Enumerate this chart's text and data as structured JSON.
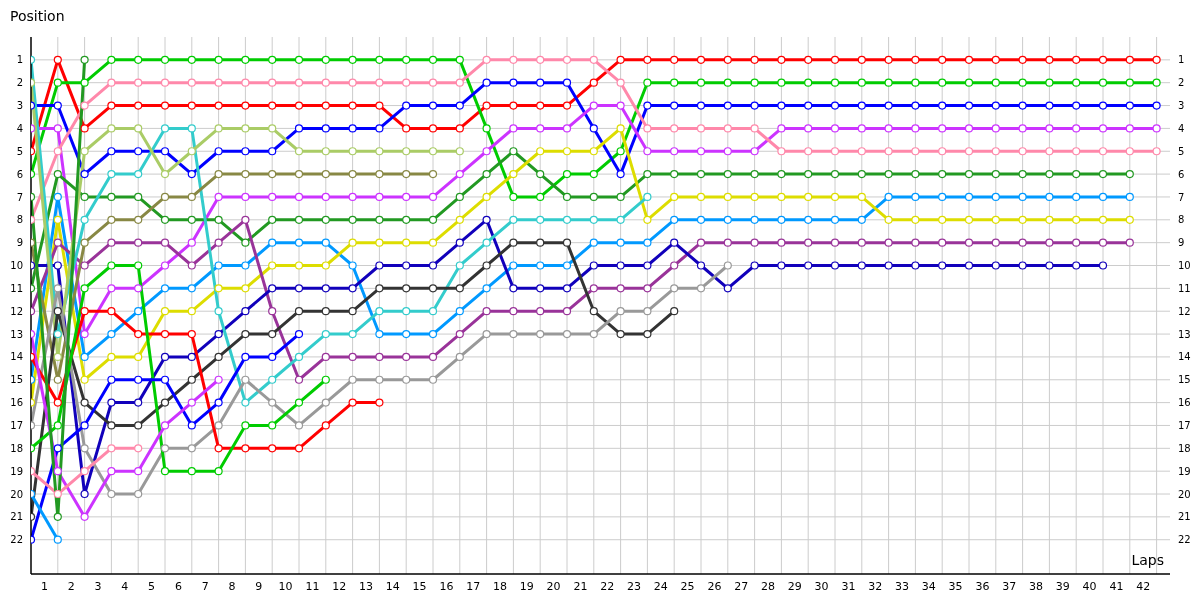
{
  "chart_data": {
    "type": "line",
    "xlabel": "Laps",
    "ylabel": "Position",
    "x": [
      0,
      1,
      2,
      3,
      4,
      5,
      6,
      7,
      8,
      9,
      10,
      11,
      12,
      13,
      14,
      15,
      16,
      17,
      18,
      19,
      20,
      21,
      22,
      23,
      24,
      25,
      26,
      27,
      28,
      29,
      30,
      31,
      32,
      33,
      34,
      35,
      36,
      37,
      38,
      39,
      40,
      41,
      42
    ],
    "xlim": [
      0,
      42.5
    ],
    "xticks": [
      {
        "value": 0.5,
        "label": "1"
      },
      {
        "value": 1.5,
        "label": "2"
      },
      {
        "value": 2.5,
        "label": "3"
      },
      {
        "value": 3.5,
        "label": "4"
      },
      {
        "value": 4.5,
        "label": "5"
      },
      {
        "value": 5.5,
        "label": "6"
      },
      {
        "value": 6.5,
        "label": "7"
      },
      {
        "value": 7.5,
        "label": "8"
      },
      {
        "value": 8.5,
        "label": "9"
      },
      {
        "value": 9.5,
        "label": "10"
      },
      {
        "value": 10.5,
        "label": "11"
      },
      {
        "value": 11.5,
        "label": "12"
      },
      {
        "value": 12.5,
        "label": "13"
      },
      {
        "value": 13.5,
        "label": "14"
      },
      {
        "value": 14.5,
        "label": "15"
      },
      {
        "value": 15.5,
        "label": "16"
      },
      {
        "value": 16.5,
        "label": "17"
      },
      {
        "value": 17.5,
        "label": "18"
      },
      {
        "value": 18.5,
        "label": "19"
      },
      {
        "value": 19.5,
        "label": "20"
      },
      {
        "value": 20.5,
        "label": "21"
      },
      {
        "value": 21.5,
        "label": "22"
      },
      {
        "value": 22.5,
        "label": "23"
      },
      {
        "value": 23.5,
        "label": "24"
      },
      {
        "value": 24.5,
        "label": "25"
      },
      {
        "value": 25.5,
        "label": "26"
      },
      {
        "value": 26.5,
        "label": "27"
      },
      {
        "value": 27.5,
        "label": "28"
      },
      {
        "value": 28.5,
        "label": "29"
      },
      {
        "value": 29.5,
        "label": "30"
      },
      {
        "value": 30.5,
        "label": "31"
      },
      {
        "value": 31.5,
        "label": "32"
      },
      {
        "value": 32.5,
        "label": "33"
      },
      {
        "value": 33.5,
        "label": "34"
      },
      {
        "value": 34.5,
        "label": "35"
      },
      {
        "value": 35.5,
        "label": "36"
      },
      {
        "value": 36.5,
        "label": "37"
      },
      {
        "value": 37.5,
        "label": "38"
      },
      {
        "value": 38.5,
        "label": "39"
      },
      {
        "value": 39.5,
        "label": "40"
      },
      {
        "value": 40.5,
        "label": "41"
      },
      {
        "value": 41.5,
        "label": "42"
      },
      {
        "value": 1,
        "label": null
      },
      {
        "value": 2,
        "label": null
      },
      {
        "value": 3,
        "label": null
      },
      {
        "value": 4,
        "label": null
      },
      {
        "value": 5,
        "label": null
      },
      {
        "value": 6,
        "label": null
      },
      {
        "value": 7,
        "label": null
      },
      {
        "value": 8,
        "label": null
      },
      {
        "value": 9,
        "label": null
      },
      {
        "value": 10,
        "label": null
      },
      {
        "value": 11,
        "label": null
      },
      {
        "value": 12,
        "label": null
      },
      {
        "value": 13,
        "label": null
      },
      {
        "value": 14,
        "label": null
      },
      {
        "value": 15,
        "label": null
      },
      {
        "value": 16,
        "label": null
      },
      {
        "value": 17,
        "label": null
      },
      {
        "value": 18,
        "label": null
      },
      {
        "value": 19,
        "label": null
      },
      {
        "value": 20,
        "label": null
      },
      {
        "value": 21,
        "label": null
      },
      {
        "value": 22,
        "label": null
      },
      {
        "value": 23,
        "label": null
      },
      {
        "value": 24,
        "label": null
      },
      {
        "value": 25,
        "label": null
      },
      {
        "value": 26,
        "label": null
      },
      {
        "value": 27,
        "label": null
      },
      {
        "value": 28,
        "label": null
      },
      {
        "value": 29,
        "label": null
      },
      {
        "value": 30,
        "label": null
      },
      {
        "value": 31,
        "label": null
      },
      {
        "value": 32,
        "label": null
      },
      {
        "value": 33,
        "label": null
      },
      {
        "value": 34,
        "label": null
      },
      {
        "value": 35,
        "label": null
      },
      {
        "value": 36,
        "label": null
      },
      {
        "value": 37,
        "label": null
      },
      {
        "value": 38,
        "label": null
      },
      {
        "value": 39,
        "label": null
      },
      {
        "value": 40,
        "label": null
      },
      {
        "value": 41,
        "label": null
      },
      {
        "value": 42,
        "label": null
      }
    ],
    "ylim": [
      23.5,
      0
    ],
    "yticks": [
      1,
      2,
      3,
      4,
      5,
      6,
      7,
      8,
      9,
      10,
      11,
      12,
      13,
      14,
      15,
      16,
      17,
      18,
      19,
      20,
      21,
      22
    ],
    "y2lim": [
      23.5,
      0
    ],
    "y2ticks": [
      1,
      2,
      3,
      4,
      5,
      6,
      7,
      8,
      9,
      10,
      11,
      12,
      13,
      14,
      15,
      16,
      17,
      18,
      19,
      20,
      21,
      22
    ],
    "grid": true,
    "legend": false,
    "marker": "circle",
    "line_style": "solid",
    "series": [
      {
        "color": "#ff0000",
        "values": [
          5,
          1,
          4,
          3,
          3,
          3,
          3,
          3,
          3,
          3,
          3,
          3,
          3,
          3,
          4,
          4,
          4,
          3,
          3,
          3,
          3,
          2,
          1,
          1,
          1,
          1,
          1,
          1,
          1,
          1,
          1,
          1,
          1,
          1,
          1,
          1,
          1,
          1,
          1,
          1,
          1,
          1,
          1
        ]
      },
      {
        "color": "#00cc00",
        "values": [
          6,
          2,
          2,
          1,
          1,
          1,
          1,
          1,
          1,
          1,
          1,
          1,
          1,
          1,
          1,
          1,
          1,
          4,
          7,
          7,
          6,
          6,
          5,
          2,
          2,
          2,
          2,
          2,
          2,
          2,
          2,
          2,
          2,
          2,
          2,
          2,
          2,
          2,
          2,
          2,
          2,
          2,
          2
        ]
      },
      {
        "color": "#0000ff",
        "values": [
          3,
          3,
          6,
          5,
          5,
          5,
          6,
          5,
          5,
          5,
          4,
          4,
          4,
          4,
          3,
          3,
          3,
          2,
          2,
          2,
          2,
          4,
          6,
          3,
          3,
          3,
          3,
          3,
          3,
          3,
          3,
          3,
          3,
          3,
          3,
          3,
          3,
          3,
          3,
          3,
          3,
          3,
          3
        ]
      },
      {
        "color": "#cc33ff",
        "values": [
          4,
          4,
          13,
          11,
          11,
          10,
          9,
          7,
          7,
          7,
          7,
          7,
          7,
          7,
          7,
          7,
          6,
          5,
          4,
          4,
          4,
          3,
          3,
          5,
          5,
          5,
          5,
          5,
          4,
          4,
          4,
          4,
          4,
          4,
          4,
          4,
          4,
          4,
          4,
          4,
          4,
          4,
          4
        ]
      },
      {
        "color": "#ff88aa",
        "values": [
          8,
          5,
          3,
          2,
          2,
          2,
          2,
          2,
          2,
          2,
          2,
          2,
          2,
          2,
          2,
          2,
          2,
          1,
          1,
          1,
          1,
          1,
          2,
          4,
          4,
          4,
          4,
          4,
          5,
          5,
          5,
          5,
          5,
          5,
          5,
          5,
          5,
          5,
          5,
          5,
          5,
          5,
          5
        ]
      },
      {
        "color": "#229922",
        "values": [
          11,
          6,
          7,
          7,
          7,
          8,
          8,
          8,
          9,
          8,
          8,
          8,
          8,
          8,
          8,
          8,
          7,
          6,
          5,
          6,
          7,
          7,
          7,
          6,
          6,
          6,
          6,
          6,
          6,
          6,
          6,
          6,
          6,
          6,
          6,
          6,
          6,
          6,
          6,
          6,
          6,
          6,
          null
        ]
      },
      {
        "color": "#0099ff",
        "values": [
          15,
          7,
          14,
          13,
          12,
          11,
          11,
          10,
          10,
          9,
          9,
          9,
          10,
          13,
          13,
          13,
          12,
          11,
          10,
          10,
          10,
          9,
          9,
          9,
          8,
          8,
          8,
          8,
          8,
          8,
          8,
          8,
          7,
          7,
          7,
          7,
          7,
          7,
          7,
          7,
          7,
          7,
          null
        ]
      },
      {
        "color": "#dddd00",
        "values": [
          16,
          8,
          15,
          14,
          14,
          12,
          12,
          11,
          11,
          10,
          10,
          10,
          9,
          9,
          9,
          9,
          8,
          7,
          6,
          5,
          5,
          5,
          4,
          8,
          7,
          7,
          7,
          7,
          7,
          7,
          7,
          7,
          8,
          8,
          8,
          8,
          8,
          8,
          8,
          8,
          8,
          8,
          null
        ]
      },
      {
        "color": "#993399",
        "values": [
          12,
          9,
          10,
          9,
          9,
          9,
          10,
          9,
          8,
          12,
          15,
          14,
          14,
          14,
          14,
          14,
          13,
          12,
          12,
          12,
          12,
          11,
          11,
          11,
          10,
          9,
          9,
          9,
          9,
          9,
          9,
          9,
          9,
          9,
          9,
          9,
          9,
          9,
          9,
          9,
          9,
          9,
          null
        ]
      },
      {
        "color": "#1100bb",
        "values": [
          10,
          10,
          20,
          16,
          16,
          14,
          14,
          13,
          12,
          11,
          11,
          11,
          11,
          10,
          10,
          10,
          9,
          8,
          11,
          11,
          11,
          10,
          10,
          10,
          9,
          10,
          11,
          10,
          10,
          10,
          10,
          10,
          10,
          10,
          10,
          10,
          10,
          10,
          10,
          10,
          10,
          null,
          null
        ]
      },
      {
        "color": "#33cccc",
        "values": [
          1,
          13,
          8,
          6,
          6,
          4,
          4,
          12,
          16,
          15,
          14,
          13,
          13,
          12,
          12,
          12,
          10,
          9,
          8,
          8,
          8,
          8,
          8,
          7,
          null,
          null,
          null,
          null,
          null,
          null,
          null,
          null,
          null,
          null,
          null,
          null,
          null,
          null,
          null,
          null,
          null,
          null,
          null
        ]
      },
      {
        "color": "#888844",
        "values": [
          9,
          15,
          9,
          8,
          8,
          7,
          7,
          6,
          6,
          6,
          6,
          6,
          6,
          6,
          6,
          6,
          null,
          null,
          null,
          null,
          null,
          null,
          null,
          null,
          null,
          null,
          null,
          null,
          null,
          null,
          null,
          null,
          null,
          null,
          null,
          null,
          null,
          null,
          null,
          null,
          null,
          null,
          null
        ]
      },
      {
        "color": "#aacc66",
        "values": [
          2,
          14,
          5,
          4,
          4,
          6,
          5,
          4,
          4,
          4,
          5,
          5,
          5,
          5,
          5,
          5,
          5,
          null,
          null,
          null,
          null,
          null,
          null,
          null,
          null,
          null,
          null,
          null,
          null,
          null,
          null,
          null,
          null,
          null,
          null,
          null,
          null,
          null,
          null,
          null,
          null,
          null,
          null
        ]
      },
      {
        "color": "#333333",
        "values": [
          21,
          12,
          16,
          17,
          17,
          16,
          15,
          14,
          13,
          13,
          12,
          12,
          12,
          11,
          11,
          11,
          11,
          10,
          9,
          9,
          9,
          12,
          13,
          13,
          12,
          null,
          null,
          null,
          null,
          null,
          null,
          null,
          null,
          null,
          null,
          null,
          null,
          null,
          null,
          null,
          null,
          null,
          null
        ]
      },
      {
        "color": "#999999",
        "values": [
          17,
          11,
          18,
          20,
          20,
          18,
          18,
          17,
          15,
          16,
          17,
          16,
          15,
          15,
          15,
          15,
          14,
          13,
          13,
          13,
          13,
          13,
          12,
          12,
          11,
          11,
          10,
          null,
          null,
          null,
          null,
          null,
          null,
          null,
          null,
          null,
          null,
          null,
          null,
          null,
          null,
          null,
          null
        ]
      },
      {
        "color": "#ff0000",
        "values": [
          14,
          16,
          12,
          12,
          13,
          13,
          13,
          18,
          18,
          18,
          18,
          17,
          16,
          16,
          null,
          null,
          null,
          null,
          null,
          null,
          null,
          null,
          null,
          null,
          null,
          null,
          null,
          null,
          null,
          null,
          null,
          null,
          null,
          null,
          null,
          null,
          null,
          null,
          null,
          null,
          null,
          null,
          null
        ]
      },
      {
        "color": "#00cc00",
        "values": [
          18,
          17,
          11,
          10,
          10,
          19,
          19,
          19,
          17,
          17,
          16,
          15,
          null,
          null,
          null,
          null,
          null,
          null,
          null,
          null,
          null,
          null,
          null,
          null,
          null,
          null,
          null,
          null,
          null,
          null,
          null,
          null,
          null,
          null,
          null,
          null,
          null,
          null,
          null,
          null,
          null,
          null,
          null
        ]
      },
      {
        "color": "#0000ff",
        "values": [
          22,
          18,
          17,
          15,
          15,
          15,
          17,
          16,
          14,
          14,
          13,
          null,
          null,
          null,
          null,
          null,
          null,
          null,
          null,
          null,
          null,
          null,
          null,
          null,
          null,
          null,
          null,
          null,
          null,
          null,
          null,
          null,
          null,
          null,
          null,
          null,
          null,
          null,
          null,
          null,
          null,
          null,
          null
        ]
      },
      {
        "color": "#cc33ff",
        "values": [
          13,
          19,
          21,
          19,
          19,
          17,
          16,
          15,
          null,
          null,
          null,
          null,
          null,
          null,
          null,
          null,
          null,
          null,
          null,
          null,
          null,
          null,
          null,
          null,
          null,
          null,
          null,
          null,
          null,
          null,
          null,
          null,
          null,
          null,
          null,
          null,
          null,
          null,
          null,
          null,
          null,
          null,
          null
        ]
      },
      {
        "color": "#ff88aa",
        "values": [
          19,
          20,
          19,
          18,
          18,
          null,
          null,
          null,
          null,
          null,
          null,
          null,
          null,
          null,
          null,
          null,
          null,
          null,
          null,
          null,
          null,
          null,
          null,
          null,
          null,
          null,
          null,
          null,
          null,
          null,
          null,
          null,
          null,
          null,
          null,
          null,
          null,
          null,
          null,
          null,
          null,
          null,
          null
        ]
      },
      {
        "color": "#0099ff",
        "values": [
          20,
          22,
          null,
          null,
          null,
          null,
          null,
          null,
          null,
          null,
          null,
          null,
          null,
          null,
          null,
          null,
          null,
          null,
          null,
          null,
          null,
          null,
          null,
          null,
          null,
          null,
          null,
          null,
          null,
          null,
          null,
          null,
          null,
          null,
          null,
          null,
          null,
          null,
          null,
          null,
          null,
          null,
          null
        ]
      },
      {
        "color": "#229922",
        "values": [
          7,
          21,
          1,
          null,
          null,
          null,
          null,
          null,
          null,
          null,
          null,
          null,
          null,
          null,
          null,
          null,
          null,
          null,
          null,
          null,
          null,
          null,
          null,
          null,
          null,
          null,
          null,
          null,
          null,
          null,
          null,
          null,
          null,
          null,
          null,
          null,
          null,
          null,
          null,
          null,
          null,
          null,
          null
        ]
      }
    ]
  }
}
